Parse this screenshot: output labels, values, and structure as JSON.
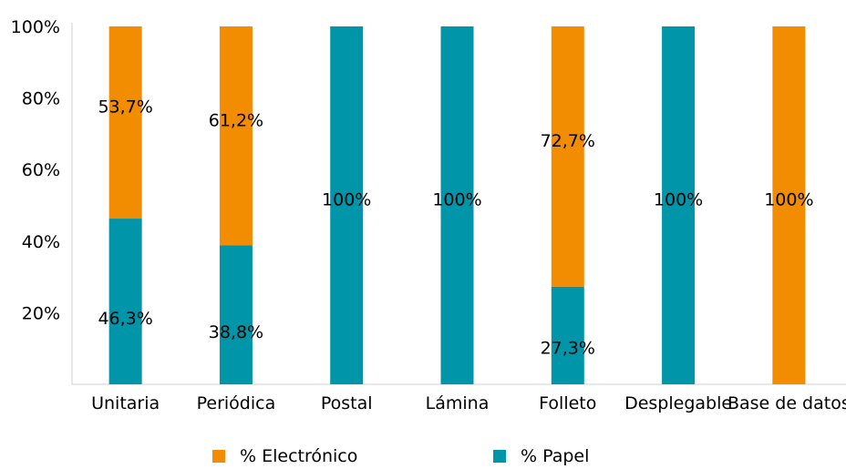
{
  "chart_data": {
    "type": "bar",
    "stacked": true,
    "percent_stacked": true,
    "categories": [
      "Unitaria",
      "Periódica",
      "Postal",
      "Lámina",
      "Folleto",
      "Desplegable",
      "Base de datos"
    ],
    "series": [
      {
        "name": "% Papel",
        "color": "#0095A8",
        "values": [
          46.3,
          38.8,
          100,
          100,
          27.3,
          100,
          0
        ],
        "labels": [
          "46,3%",
          "38,8%",
          "100%",
          "100%",
          "27,3%",
          "100%",
          ""
        ]
      },
      {
        "name": "% Electrónico",
        "color": "#F28C00",
        "values": [
          53.7,
          61.2,
          0,
          0,
          72.7,
          0,
          100
        ],
        "labels": [
          "53,7%",
          "61,2%",
          "",
          "",
          "72,7%",
          "",
          "100%"
        ]
      }
    ],
    "yticks": [
      "20%",
      "40%",
      "60%",
      "80%",
      "100%"
    ],
    "ylim": [
      0,
      100
    ],
    "legend_position": "bottom",
    "grid": false
  }
}
